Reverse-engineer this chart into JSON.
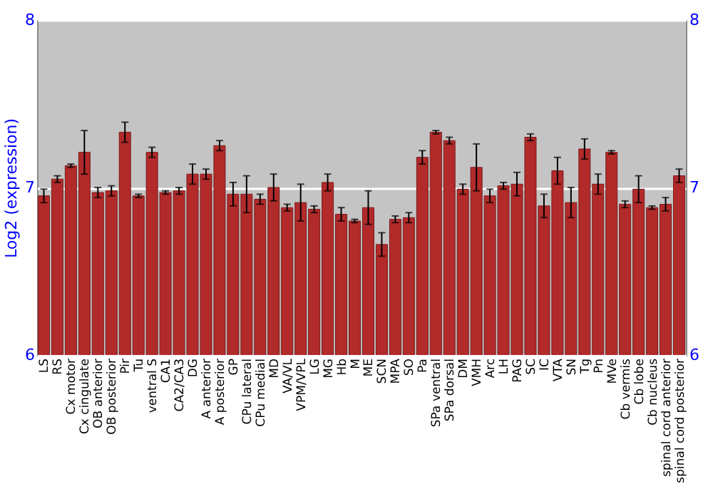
{
  "chart_data": {
    "type": "bar",
    "ylabel": "Log2 (expression)",
    "categories": [
      "LS",
      "RS",
      "Cx motor",
      "Cx cingulate",
      "OB anterior",
      "OB posterior",
      "Pir",
      "Tu",
      "ventral S",
      "CA1",
      "CA2/CA3",
      "DG",
      "A anterior",
      "A posterior",
      "GP",
      "CPu lateral",
      "CPu medial",
      "MD",
      "VA/VL",
      "VPM/VPL",
      "LG",
      "MG",
      "Hb",
      "M",
      "ME",
      "SCN",
      "MPA",
      "SO",
      "Pa",
      "SPa ventral",
      "SPa dorsal",
      "DM",
      "VMH",
      "Arc",
      "LH",
      "PAG",
      "SC",
      "IC",
      "VTA",
      "SN",
      "Tg",
      "Pn",
      "MVe",
      "Cb vermis",
      "Cb lobe",
      "Cb nucleus",
      "spinal cord anterior",
      "spinal cord posterior"
    ],
    "values": [
      6.95,
      7.05,
      7.13,
      7.21,
      6.97,
      6.98,
      7.33,
      6.95,
      7.21,
      6.97,
      6.98,
      7.08,
      7.08,
      7.25,
      6.96,
      6.96,
      6.93,
      7.0,
      6.88,
      6.91,
      6.87,
      7.03,
      6.84,
      6.8,
      6.88,
      6.66,
      6.81,
      6.82,
      7.18,
      7.33,
      7.28,
      6.99,
      7.12,
      6.95,
      7.01,
      7.02,
      7.3,
      6.89,
      7.1,
      6.91,
      7.23,
      7.02,
      7.21,
      6.9,
      6.99,
      6.88,
      6.9,
      7.07
    ],
    "errors": [
      0.04,
      0.02,
      0.01,
      0.13,
      0.03,
      0.03,
      0.06,
      0.01,
      0.03,
      0.01,
      0.02,
      0.06,
      0.03,
      0.03,
      0.07,
      0.11,
      0.03,
      0.08,
      0.02,
      0.11,
      0.02,
      0.05,
      0.04,
      0.01,
      0.1,
      0.07,
      0.02,
      0.03,
      0.04,
      0.01,
      0.02,
      0.03,
      0.14,
      0.04,
      0.02,
      0.07,
      0.02,
      0.07,
      0.08,
      0.09,
      0.06,
      0.06,
      0.01,
      0.02,
      0.08,
      0.01,
      0.04,
      0.04
    ],
    "color": "#b22a2a",
    "ylim": [
      6,
      8
    ],
    "yticks": [
      6,
      7,
      8
    ],
    "y2lim": [
      6,
      8
    ],
    "y2ticks": [
      6,
      7,
      8
    ],
    "grid": "y"
  }
}
